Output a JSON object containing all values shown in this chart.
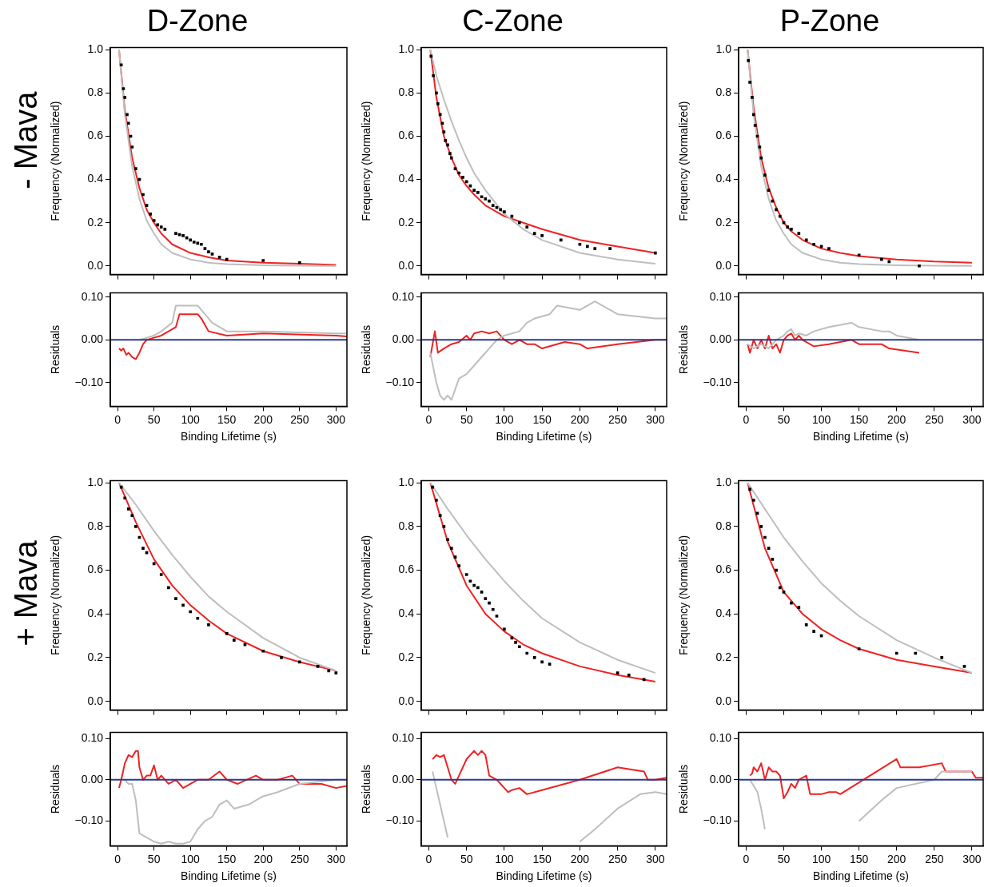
{
  "chart_data": [
    {
      "type": "line",
      "title": "D-Zone",
      "annotations": [
        "- Mava"
      ],
      "ylabel": "Frequency (Normalized)",
      "xlim": [
        -10,
        315
      ],
      "ylim": [
        -0.04,
        1.01
      ],
      "xticks": [
        0,
        50,
        100,
        150,
        200,
        250,
        300
      ],
      "yticks": [
        {
          "value": 0,
          "label": "0.0"
        },
        {
          "value": 0.2,
          "label": "0.2"
        },
        {
          "value": 0.4,
          "label": "0.4"
        },
        {
          "value": 0.6,
          "label": "0.6"
        },
        {
          "value": 0.8,
          "label": "0.8"
        },
        {
          "value": 1,
          "label": "1.0"
        }
      ],
      "tick_labels": "y",
      "series": [
        {
          "type": "scatter",
          "marker": "square",
          "color": "#000000",
          "x": [
            5,
            8,
            10,
            13,
            15,
            18,
            20,
            25,
            30,
            35,
            40,
            45,
            50,
            55,
            60,
            65,
            80,
            85,
            90,
            95,
            100,
            105,
            110,
            115,
            120,
            125,
            130,
            140,
            150,
            200,
            250
          ],
          "values": [
            0.93,
            0.82,
            0.78,
            0.7,
            0.66,
            0.6,
            0.55,
            0.45,
            0.4,
            0.33,
            0.28,
            0.24,
            0.21,
            0.19,
            0.18,
            0.17,
            0.15,
            0.145,
            0.14,
            0.13,
            0.12,
            0.11,
            0.105,
            0.1,
            0.08,
            0.065,
            0.055,
            0.04,
            0.03,
            0.025,
            0.015
          ]
        },
        {
          "type": "line",
          "color": "#bebebe",
          "x": [
            2,
            10,
            20,
            30,
            40,
            50,
            60,
            75,
            100,
            125,
            150,
            200,
            250,
            300
          ],
          "values": [
            1.0,
            0.7,
            0.46,
            0.31,
            0.21,
            0.15,
            0.1,
            0.06,
            0.03,
            0.015,
            0.008,
            0.003,
            0.001,
            0.0
          ]
        },
        {
          "type": "line",
          "color": "#ee2222",
          "x": [
            2,
            10,
            20,
            30,
            40,
            50,
            60,
            75,
            100,
            125,
            150,
            200,
            250,
            300
          ],
          "values": [
            1.0,
            0.72,
            0.5,
            0.36,
            0.26,
            0.2,
            0.15,
            0.1,
            0.06,
            0.04,
            0.025,
            0.015,
            0.01,
            0.005
          ]
        }
      ]
    },
    {
      "type": "line",
      "title": "C-Zone",
      "ylabel": "Frequency (Normalized)",
      "xlim": [
        -10,
        315
      ],
      "ylim": [
        -0.04,
        1.01
      ],
      "xticks": [
        0,
        50,
        100,
        150,
        200,
        250,
        300
      ],
      "yticks": [
        {
          "value": 0,
          "label": "0.0"
        },
        {
          "value": 0.2,
          "label": "0.2"
        },
        {
          "value": 0.4,
          "label": "0.4"
        },
        {
          "value": 0.6,
          "label": "0.6"
        },
        {
          "value": 0.8,
          "label": "0.8"
        },
        {
          "value": 1,
          "label": "1.0"
        }
      ],
      "tick_labels": "y",
      "series": [
        {
          "type": "scatter",
          "marker": "square",
          "color": "#000000",
          "x": [
            3,
            6,
            10,
            12,
            15,
            18,
            20,
            22,
            25,
            28,
            30,
            35,
            40,
            45,
            50,
            55,
            60,
            65,
            70,
            75,
            80,
            85,
            90,
            95,
            100,
            110,
            120,
            130,
            140,
            150,
            175,
            200,
            210,
            220,
            240,
            300
          ],
          "values": [
            0.97,
            0.88,
            0.8,
            0.75,
            0.7,
            0.66,
            0.62,
            0.58,
            0.56,
            0.52,
            0.5,
            0.45,
            0.43,
            0.41,
            0.39,
            0.37,
            0.35,
            0.34,
            0.32,
            0.31,
            0.3,
            0.28,
            0.27,
            0.26,
            0.25,
            0.23,
            0.2,
            0.18,
            0.15,
            0.14,
            0.12,
            0.1,
            0.09,
            0.08,
            0.08,
            0.06
          ]
        },
        {
          "type": "line",
          "color": "#bebebe",
          "x": [
            2,
            10,
            20,
            30,
            40,
            50,
            60,
            75,
            100,
            125,
            150,
            200,
            250,
            300
          ],
          "values": [
            1.0,
            0.88,
            0.77,
            0.67,
            0.58,
            0.5,
            0.43,
            0.35,
            0.24,
            0.17,
            0.12,
            0.06,
            0.03,
            0.01
          ]
        },
        {
          "type": "line",
          "color": "#ee2222",
          "x": [
            2,
            10,
            20,
            30,
            40,
            50,
            60,
            75,
            100,
            125,
            150,
            200,
            250,
            300
          ],
          "values": [
            1.0,
            0.78,
            0.6,
            0.5,
            0.42,
            0.37,
            0.33,
            0.28,
            0.23,
            0.2,
            0.17,
            0.12,
            0.09,
            0.06
          ]
        }
      ]
    },
    {
      "type": "line",
      "title": "P-Zone",
      "ylabel": "Frequency (Normalized)",
      "xlim": [
        -10,
        315
      ],
      "ylim": [
        -0.04,
        1.01
      ],
      "xticks": [
        0,
        50,
        100,
        150,
        200,
        250,
        300
      ],
      "yticks": [
        {
          "value": 0,
          "label": "0.0"
        },
        {
          "value": 0.2,
          "label": "0.2"
        },
        {
          "value": 0.4,
          "label": "0.4"
        },
        {
          "value": 0.6,
          "label": "0.6"
        },
        {
          "value": 0.8,
          "label": "0.8"
        },
        {
          "value": 1,
          "label": "1.0"
        }
      ],
      "tick_labels": "y",
      "series": [
        {
          "type": "scatter",
          "marker": "square",
          "color": "#000000",
          "x": [
            3,
            5,
            8,
            10,
            12,
            15,
            18,
            20,
            25,
            30,
            35,
            40,
            45,
            50,
            55,
            60,
            70,
            80,
            90,
            100,
            110,
            150,
            180,
            190,
            230
          ],
          "values": [
            0.95,
            0.85,
            0.78,
            0.7,
            0.65,
            0.6,
            0.55,
            0.5,
            0.42,
            0.35,
            0.3,
            0.26,
            0.23,
            0.2,
            0.18,
            0.17,
            0.15,
            0.12,
            0.1,
            0.09,
            0.08,
            0.05,
            0.03,
            0.02,
            0.0
          ]
        },
        {
          "type": "line",
          "color": "#bebebe",
          "x": [
            2,
            10,
            20,
            30,
            40,
            50,
            60,
            75,
            100,
            125,
            150,
            200,
            250,
            300
          ],
          "values": [
            1.0,
            0.7,
            0.46,
            0.31,
            0.21,
            0.15,
            0.1,
            0.06,
            0.03,
            0.015,
            0.008,
            0.003,
            0.001,
            0.0
          ]
        },
        {
          "type": "line",
          "color": "#ee2222",
          "x": [
            2,
            10,
            20,
            30,
            40,
            50,
            60,
            75,
            100,
            125,
            150,
            200,
            250,
            300
          ],
          "values": [
            1.0,
            0.73,
            0.5,
            0.36,
            0.27,
            0.2,
            0.16,
            0.12,
            0.08,
            0.06,
            0.045,
            0.03,
            0.02,
            0.015
          ]
        }
      ]
    },
    {
      "type": "line",
      "xlabel": "Binding Lifetime (s)",
      "ylabel": "Residuals",
      "xlim": [
        -10,
        315
      ],
      "ylim": [
        -0.155,
        0.11
      ],
      "xticks": [
        0,
        50,
        100,
        150,
        200,
        250,
        300
      ],
      "yticks": [
        {
          "value": -0.1,
          "label": "−0.10"
        },
        {
          "value": 0,
          "label": "0.00"
        },
        {
          "value": 0.1,
          "label": "0.10"
        }
      ],
      "ref_lines": [
        {
          "axis": "y",
          "value": 0,
          "color": "#2b3a8f"
        }
      ],
      "series": [
        {
          "type": "line",
          "color": "#bebebe",
          "x": [
            30,
            50,
            60,
            75,
            80,
            110,
            120,
            130,
            150,
            200,
            300,
            315
          ],
          "values": [
            0.0,
            0.01,
            0.02,
            0.04,
            0.08,
            0.08,
            0.06,
            0.04,
            0.02,
            0.02,
            0.015,
            0.015
          ]
        },
        {
          "type": "line",
          "color": "#ee2222",
          "x": [
            2,
            5,
            8,
            12,
            15,
            20,
            25,
            30,
            35,
            40,
            50,
            60,
            70,
            80,
            85,
            110,
            115,
            125,
            150,
            200,
            300,
            315
          ],
          "values": [
            -0.02,
            -0.025,
            -0.02,
            -0.035,
            -0.03,
            -0.04,
            -0.045,
            -0.03,
            -0.01,
            0.0,
            0.005,
            0.01,
            0.02,
            0.03,
            0.06,
            0.06,
            0.05,
            0.02,
            0.01,
            0.015,
            0.01,
            0.008
          ]
        }
      ]
    },
    {
      "type": "line",
      "xlabel": "Binding Lifetime (s)",
      "ylabel": "Residuals",
      "xlim": [
        -10,
        315
      ],
      "ylim": [
        -0.155,
        0.11
      ],
      "xticks": [
        0,
        50,
        100,
        150,
        200,
        250,
        300
      ],
      "yticks": [
        {
          "value": -0.1,
          "label": "−0.10"
        },
        {
          "value": 0,
          "label": "0.00"
        },
        {
          "value": 0.1,
          "label": "0.10"
        }
      ],
      "ref_lines": [
        {
          "axis": "y",
          "value": 0,
          "color": "#2b3a8f"
        }
      ],
      "series": [
        {
          "type": "line",
          "color": "#bebebe",
          "x": [
            2,
            10,
            15,
            20,
            25,
            30,
            40,
            50,
            60,
            70,
            80,
            90,
            100,
            120,
            130,
            140,
            160,
            170,
            200,
            220,
            250,
            300,
            315
          ],
          "values": [
            -0.03,
            -0.1,
            -0.13,
            -0.14,
            -0.13,
            -0.14,
            -0.09,
            -0.08,
            -0.06,
            -0.04,
            -0.02,
            0.0,
            0.01,
            0.02,
            0.04,
            0.05,
            0.06,
            0.08,
            0.07,
            0.09,
            0.06,
            0.05,
            0.05
          ]
        },
        {
          "type": "line",
          "color": "#ee2222",
          "x": [
            2,
            8,
            12,
            20,
            30,
            40,
            50,
            55,
            60,
            70,
            80,
            90,
            100,
            110,
            120,
            130,
            140,
            150,
            180,
            200,
            210,
            250,
            300,
            315
          ],
          "values": [
            -0.04,
            0.02,
            -0.03,
            -0.02,
            -0.01,
            -0.005,
            0.01,
            0.0,
            0.015,
            0.02,
            0.015,
            0.02,
            0.0,
            -0.01,
            0.0,
            -0.01,
            -0.01,
            -0.02,
            -0.005,
            -0.01,
            -0.02,
            -0.01,
            0.0,
            0.0
          ]
        }
      ]
    },
    {
      "type": "line",
      "xlabel": "Binding Lifetime (s)",
      "ylabel": "Residuals",
      "xlim": [
        -10,
        315
      ],
      "ylim": [
        -0.155,
        0.11
      ],
      "xticks": [
        0,
        50,
        100,
        150,
        200,
        250,
        300
      ],
      "yticks": [
        {
          "value": -0.1,
          "label": "−0.10"
        },
        {
          "value": 0,
          "label": "0.00"
        },
        {
          "value": 0.1,
          "label": "0.10"
        }
      ],
      "ref_lines": [
        {
          "axis": "y",
          "value": 0,
          "color": "#2b3a8f"
        }
      ],
      "series": [
        {
          "type": "line",
          "color": "#bebebe",
          "x": [
            2,
            10,
            20,
            30,
            40,
            50,
            55,
            60,
            65,
            70,
            80,
            90,
            110,
            140,
            150,
            180,
            190,
            200,
            230
          ],
          "values": [
            -0.01,
            -0.02,
            -0.01,
            -0.02,
            0.0,
            0.01,
            0.02,
            0.025,
            0.01,
            0.015,
            0.01,
            0.02,
            0.03,
            0.04,
            0.03,
            0.02,
            0.02,
            0.01,
            0.0
          ]
        },
        {
          "type": "line",
          "color": "#ee2222",
          "x": [
            2,
            5,
            10,
            15,
            20,
            25,
            30,
            35,
            40,
            45,
            50,
            55,
            60,
            65,
            70,
            75,
            90,
            110,
            140,
            150,
            180,
            190,
            230
          ],
          "values": [
            -0.01,
            -0.03,
            0.0,
            -0.02,
            0.0,
            -0.02,
            0.01,
            -0.02,
            -0.01,
            -0.03,
            0.0,
            0.01,
            0.015,
            0.0,
            0.01,
            0.0,
            -0.015,
            -0.01,
            0.0,
            -0.01,
            -0.01,
            -0.02,
            -0.03
          ]
        }
      ]
    },
    {
      "type": "line",
      "annotations": [
        "+ Mava"
      ],
      "ylabel": "Frequency (Normalized)",
      "xlim": [
        -10,
        315
      ],
      "ylim": [
        -0.04,
        1.01
      ],
      "xticks": [
        0,
        50,
        100,
        150,
        200,
        250,
        300
      ],
      "yticks": [
        {
          "value": 0,
          "label": "0.0"
        },
        {
          "value": 0.2,
          "label": "0.2"
        },
        {
          "value": 0.4,
          "label": "0.4"
        },
        {
          "value": 0.6,
          "label": "0.6"
        },
        {
          "value": 0.8,
          "label": "0.8"
        },
        {
          "value": 1,
          "label": "1.0"
        }
      ],
      "tick_labels": "y",
      "series": [
        {
          "type": "scatter",
          "marker": "square",
          "color": "#000000",
          "x": [
            5,
            10,
            15,
            20,
            25,
            30,
            35,
            40,
            50,
            60,
            70,
            80,
            90,
            100,
            110,
            125,
            150,
            160,
            175,
            200,
            225,
            250,
            275,
            290,
            300
          ],
          "values": [
            0.98,
            0.93,
            0.88,
            0.85,
            0.8,
            0.75,
            0.7,
            0.68,
            0.63,
            0.58,
            0.52,
            0.47,
            0.44,
            0.41,
            0.38,
            0.35,
            0.31,
            0.28,
            0.26,
            0.23,
            0.2,
            0.18,
            0.16,
            0.14,
            0.13
          ]
        },
        {
          "type": "line",
          "color": "#bebebe",
          "x": [
            2,
            25,
            50,
            75,
            100,
            125,
            150,
            200,
            250,
            300
          ],
          "values": [
            1.0,
            0.9,
            0.78,
            0.67,
            0.57,
            0.48,
            0.41,
            0.29,
            0.2,
            0.14
          ]
        },
        {
          "type": "line",
          "color": "#ee2222",
          "x": [
            2,
            25,
            50,
            75,
            100,
            125,
            150,
            200,
            250,
            300
          ],
          "values": [
            1.0,
            0.82,
            0.65,
            0.53,
            0.44,
            0.37,
            0.31,
            0.23,
            0.18,
            0.14
          ]
        }
      ]
    },
    {
      "type": "line",
      "ylabel": "Frequency (Normalized)",
      "xlim": [
        -10,
        315
      ],
      "ylim": [
        -0.04,
        1.01
      ],
      "xticks": [
        0,
        50,
        100,
        150,
        200,
        250,
        300
      ],
      "yticks": [
        {
          "value": 0,
          "label": "0.0"
        },
        {
          "value": 0.2,
          "label": "0.2"
        },
        {
          "value": 0.4,
          "label": "0.4"
        },
        {
          "value": 0.6,
          "label": "0.6"
        },
        {
          "value": 0.8,
          "label": "0.8"
        },
        {
          "value": 1,
          "label": "1.0"
        }
      ],
      "tick_labels": "y",
      "series": [
        {
          "type": "scatter",
          "marker": "square",
          "color": "#000000",
          "x": [
            5,
            10,
            15,
            20,
            25,
            30,
            35,
            40,
            50,
            55,
            60,
            65,
            70,
            75,
            80,
            85,
            90,
            100,
            110,
            115,
            120,
            130,
            140,
            150,
            160,
            250,
            265,
            285
          ],
          "values": [
            0.98,
            0.92,
            0.85,
            0.8,
            0.74,
            0.7,
            0.66,
            0.62,
            0.58,
            0.55,
            0.53,
            0.52,
            0.5,
            0.47,
            0.45,
            0.42,
            0.39,
            0.33,
            0.29,
            0.27,
            0.25,
            0.22,
            0.2,
            0.18,
            0.17,
            0.13,
            0.12,
            0.1
          ]
        },
        {
          "type": "line",
          "color": "#bebebe",
          "x": [
            2,
            25,
            50,
            75,
            100,
            125,
            150,
            200,
            250,
            300
          ],
          "values": [
            1.0,
            0.88,
            0.76,
            0.65,
            0.55,
            0.46,
            0.38,
            0.27,
            0.19,
            0.13
          ]
        },
        {
          "type": "line",
          "color": "#ee2222",
          "x": [
            2,
            25,
            50,
            75,
            100,
            125,
            150,
            200,
            250,
            300
          ],
          "values": [
            1.0,
            0.73,
            0.53,
            0.4,
            0.32,
            0.26,
            0.22,
            0.16,
            0.12,
            0.09
          ]
        }
      ]
    },
    {
      "type": "line",
      "ylabel": "Frequency (Normalized)",
      "xlim": [
        -10,
        315
      ],
      "ylim": [
        -0.04,
        1.01
      ],
      "xticks": [
        0,
        50,
        100,
        150,
        200,
        250,
        300
      ],
      "yticks": [
        {
          "value": 0,
          "label": "0.0"
        },
        {
          "value": 0.2,
          "label": "0.2"
        },
        {
          "value": 0.4,
          "label": "0.4"
        },
        {
          "value": 0.6,
          "label": "0.6"
        },
        {
          "value": 0.8,
          "label": "0.8"
        },
        {
          "value": 1,
          "label": "1.0"
        }
      ],
      "tick_labels": "y",
      "series": [
        {
          "type": "scatter",
          "marker": "square",
          "color": "#000000",
          "x": [
            5,
            10,
            15,
            20,
            25,
            30,
            35,
            40,
            45,
            50,
            60,
            70,
            80,
            90,
            100,
            150,
            200,
            225,
            260,
            290
          ],
          "values": [
            0.97,
            0.92,
            0.86,
            0.8,
            0.75,
            0.7,
            0.65,
            0.6,
            0.52,
            0.5,
            0.45,
            0.43,
            0.35,
            0.32,
            0.3,
            0.24,
            0.22,
            0.22,
            0.2,
            0.16
          ]
        },
        {
          "type": "line",
          "color": "#bebebe",
          "x": [
            2,
            25,
            50,
            75,
            100,
            125,
            150,
            200,
            250,
            300
          ],
          "values": [
            1.0,
            0.88,
            0.75,
            0.64,
            0.54,
            0.46,
            0.39,
            0.28,
            0.2,
            0.13
          ]
        },
        {
          "type": "line",
          "color": "#ee2222",
          "x": [
            2,
            25,
            50,
            75,
            100,
            125,
            150,
            200,
            250,
            300
          ],
          "values": [
            1.0,
            0.7,
            0.5,
            0.4,
            0.33,
            0.28,
            0.24,
            0.19,
            0.16,
            0.13
          ]
        }
      ]
    },
    {
      "type": "line",
      "xlabel": "Binding Lifetime (s)",
      "ylabel": "Residuals",
      "xlim": [
        -10,
        315
      ],
      "ylim": [
        -0.16,
        0.115
      ],
      "xticks": [
        0,
        50,
        100,
        150,
        200,
        250,
        300
      ],
      "yticks": [
        {
          "value": -0.1,
          "label": "−0.10"
        },
        {
          "value": 0,
          "label": "0.00"
        },
        {
          "value": 0.1,
          "label": "0.10"
        }
      ],
      "ref_lines": [
        {
          "axis": "y",
          "value": 0,
          "color": "#2b3a8f"
        }
      ],
      "series": [
        {
          "type": "line",
          "color": "#bebebe",
          "x": [
            10,
            15,
            20,
            25,
            30,
            40,
            50,
            60,
            70,
            80,
            90,
            100,
            110,
            120,
            130,
            140,
            150,
            160,
            180,
            200,
            220,
            250,
            300,
            315
          ],
          "values": [
            0.0,
            -0.01,
            -0.01,
            -0.05,
            -0.13,
            -0.14,
            -0.15,
            -0.155,
            -0.15,
            -0.155,
            -0.155,
            -0.15,
            -0.12,
            -0.1,
            -0.09,
            -0.06,
            -0.05,
            -0.07,
            -0.06,
            -0.04,
            -0.03,
            -0.01,
            0.0,
            0.0
          ]
        },
        {
          "type": "line",
          "color": "#ee2222",
          "x": [
            2,
            5,
            10,
            15,
            20,
            25,
            28,
            30,
            35,
            40,
            45,
            50,
            55,
            60,
            70,
            80,
            90,
            100,
            110,
            125,
            140,
            150,
            165,
            190,
            200,
            220,
            240,
            250,
            280,
            300,
            315
          ],
          "values": [
            -0.02,
            0.0,
            0.04,
            0.06,
            0.055,
            0.07,
            0.07,
            0.03,
            0.0,
            0.01,
            0.01,
            0.035,
            0.0,
            0.01,
            -0.01,
            0.0,
            -0.02,
            -0.01,
            0.0,
            0.0,
            0.02,
            0.0,
            -0.01,
            0.01,
            0.0,
            0.0,
            0.01,
            -0.01,
            -0.01,
            -0.02,
            -0.015
          ]
        }
      ]
    },
    {
      "type": "line",
      "xlabel": "Binding Lifetime (s)",
      "ylabel": "Residuals",
      "xlim": [
        -10,
        315
      ],
      "ylim": [
        -0.16,
        0.115
      ],
      "xticks": [
        0,
        50,
        100,
        150,
        200,
        250,
        300
      ],
      "yticks": [
        {
          "value": -0.1,
          "label": "−0.10"
        },
        {
          "value": 0,
          "label": "0.00"
        },
        {
          "value": 0.1,
          "label": "0.10"
        }
      ],
      "ref_lines": [
        {
          "axis": "y",
          "value": 0,
          "color": "#2b3a8f"
        }
      ],
      "series": [
        {
          "type": "line",
          "color": "#bebebe",
          "x": [
            5,
            10,
            15,
            20,
            25,
            30,
            35,
            175,
            180,
            200,
            220,
            250,
            280,
            300,
            315
          ],
          "values": [
            0.02,
            -0.02,
            -0.06,
            -0.1,
            -0.14,
            null,
            null,
            null,
            null,
            -0.15,
            -0.12,
            -0.07,
            -0.035,
            -0.03,
            -0.035
          ]
        },
        {
          "type": "line",
          "color": "#ee2222",
          "x": [
            5,
            10,
            15,
            20,
            25,
            30,
            35,
            40,
            50,
            60,
            65,
            70,
            75,
            80,
            90,
            100,
            105,
            110,
            120,
            130,
            150,
            200,
            250,
            285,
            290,
            300,
            315
          ],
          "values": [
            0.05,
            0.06,
            0.055,
            0.06,
            0.03,
            0.0,
            -0.01,
            0.01,
            0.05,
            0.07,
            0.06,
            0.07,
            0.06,
            0.01,
            0.0,
            -0.02,
            -0.03,
            -0.025,
            -0.02,
            -0.035,
            -0.025,
            0.0,
            0.03,
            0.02,
            0.0,
            0.0,
            0.005
          ]
        }
      ]
    },
    {
      "type": "line",
      "xlabel": "Binding Lifetime (s)",
      "ylabel": "Residuals",
      "xlim": [
        -10,
        315
      ],
      "ylim": [
        -0.16,
        0.115
      ],
      "xticks": [
        0,
        50,
        100,
        150,
        200,
        250,
        300
      ],
      "yticks": [
        {
          "value": -0.1,
          "label": "−0.10"
        },
        {
          "value": 0,
          "label": "0.00"
        },
        {
          "value": 0.1,
          "label": "0.10"
        }
      ],
      "ref_lines": [
        {
          "axis": "y",
          "value": 0,
          "color": "#2b3a8f"
        }
      ],
      "series": [
        {
          "type": "line",
          "color": "#bebebe",
          "x": [
            5,
            15,
            20,
            25,
            30,
            35,
            115,
            120,
            150,
            180,
            200,
            250,
            260,
            280,
            300
          ],
          "values": [
            0.0,
            -0.03,
            -0.07,
            -0.12,
            null,
            null,
            null,
            null,
            -0.1,
            -0.05,
            -0.02,
            0.0,
            0.02,
            0.02,
            0.02
          ]
        },
        {
          "type": "line",
          "color": "#ee2222",
          "x": [
            5,
            8,
            10,
            15,
            20,
            25,
            30,
            35,
            40,
            45,
            50,
            55,
            60,
            65,
            70,
            80,
            85,
            90,
            100,
            110,
            120,
            125,
            200,
            205,
            230,
            260,
            265,
            300,
            305,
            315
          ],
          "values": [
            0.01,
            0.015,
            0.03,
            0.02,
            0.04,
            0.0,
            0.03,
            0.02,
            0.02,
            0.01,
            -0.045,
            -0.03,
            -0.01,
            -0.02,
            0.0,
            0.01,
            -0.035,
            -0.035,
            -0.035,
            -0.03,
            -0.03,
            -0.035,
            0.05,
            0.03,
            0.03,
            0.04,
            0.02,
            0.02,
            0.005,
            0.005
          ]
        }
      ]
    }
  ]
}
